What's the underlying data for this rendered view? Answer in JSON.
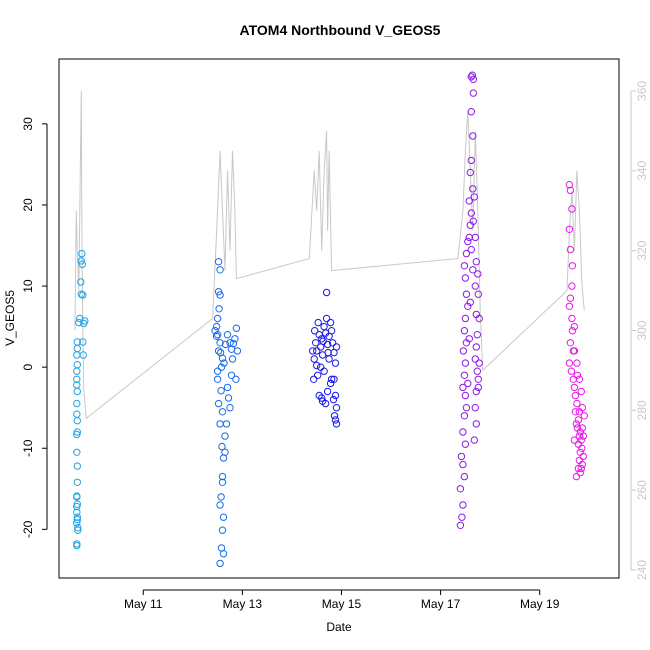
{
  "chart_data": {
    "type": "scatter",
    "title": "ATOM4 Northbound V_GEOS5",
    "xlabel": "Date",
    "ylabel": "V_GEOS5",
    "xlim": [
      9.3,
      20.6
    ],
    "ylim": [
      -26,
      38
    ],
    "x_ticks": [
      {
        "value": 11,
        "label": "May 11"
      },
      {
        "value": 13,
        "label": "May 13"
      },
      {
        "value": 15,
        "label": "May 15"
      },
      {
        "value": 17,
        "label": "May 17"
      },
      {
        "value": 19,
        "label": "May 19"
      }
    ],
    "y_ticks": [
      -20,
      -10,
      0,
      10,
      20,
      30
    ],
    "y2lim": [
      238,
      368
    ],
    "y2_ticks": [
      240,
      260,
      280,
      300,
      320,
      340,
      360
    ],
    "grid": false,
    "series": [
      {
        "color": "#1fa3e6",
        "x_range": [
          9.62,
          9.9
        ],
        "points": [
          [
            9.66,
            -22.0
          ],
          [
            9.66,
            -21.8
          ],
          [
            9.68,
            -19.8
          ],
          [
            9.66,
            -19.2
          ],
          [
            9.67,
            -18.5
          ],
          [
            9.66,
            -17.9
          ],
          [
            9.66,
            -17.2
          ],
          [
            9.67,
            -16.9
          ],
          [
            9.66,
            -15.9
          ],
          [
            9.67,
            -14.2
          ],
          [
            9.67,
            -12.2
          ],
          [
            9.66,
            -10.5
          ],
          [
            9.67,
            -8.0
          ],
          [
            9.66,
            -8.3
          ],
          [
            9.67,
            -6.6
          ],
          [
            9.66,
            -5.8
          ],
          [
            9.66,
            -4.5
          ],
          [
            9.67,
            -3.0
          ],
          [
            9.66,
            -2.2
          ],
          [
            9.66,
            -1.5
          ],
          [
            9.66,
            -0.5
          ],
          [
            9.67,
            0.3
          ],
          [
            9.66,
            1.5
          ],
          [
            9.67,
            2.3
          ],
          [
            9.67,
            3.1
          ],
          [
            9.72,
            6.0
          ],
          [
            9.75,
            9.0
          ],
          [
            9.74,
            10.5
          ],
          [
            9.77,
            12.7
          ],
          [
            9.76,
            14.0
          ],
          [
            9.78,
            3.1
          ],
          [
            9.79,
            1.5
          ],
          [
            9.8,
            5.4
          ],
          [
            9.82,
            5.7
          ],
          [
            9.78,
            8.9
          ],
          [
            9.75,
            13.1
          ],
          [
            9.7,
            5.5
          ],
          [
            9.68,
            -20.1
          ],
          [
            9.67,
            -18.8
          ],
          [
            9.66,
            -16.0
          ]
        ]
      },
      {
        "color": "#1a6ae8",
        "x_range": [
          12.4,
          12.95
        ],
        "points": [
          [
            12.55,
            -24.2
          ],
          [
            12.62,
            -23.0
          ],
          [
            12.58,
            -22.3
          ],
          [
            12.6,
            -20.1
          ],
          [
            12.55,
            -17.0
          ],
          [
            12.6,
            -14.2
          ],
          [
            12.62,
            -11.2
          ],
          [
            12.59,
            -9.8
          ],
          [
            12.65,
            -8.5
          ],
          [
            12.55,
            -7.0
          ],
          [
            12.6,
            -5.5
          ],
          [
            12.52,
            -4.5
          ],
          [
            12.57,
            -2.9
          ],
          [
            12.5,
            -1.5
          ],
          [
            12.58,
            0.0
          ],
          [
            12.6,
            1.1
          ],
          [
            12.52,
            2.0
          ],
          [
            12.55,
            3.0
          ],
          [
            12.5,
            4.0
          ],
          [
            12.48,
            5.0
          ],
          [
            12.5,
            6.0
          ],
          [
            12.53,
            7.2
          ],
          [
            12.55,
            8.9
          ],
          [
            12.52,
            9.3
          ],
          [
            12.55,
            12.0
          ],
          [
            12.52,
            13.0
          ],
          [
            12.7,
            4.0
          ],
          [
            12.75,
            3.0
          ],
          [
            12.78,
            2.2
          ],
          [
            12.8,
            1.0
          ],
          [
            12.85,
            3.5
          ],
          [
            12.88,
            4.8
          ],
          [
            12.87,
            -1.5
          ],
          [
            12.7,
            -2.5
          ],
          [
            12.75,
            -5.0
          ],
          [
            12.82,
            2.9
          ],
          [
            12.9,
            2.0
          ],
          [
            12.65,
            -10.5
          ],
          [
            12.6,
            -13.5
          ],
          [
            12.57,
            -16.0
          ],
          [
            12.62,
            -18.5
          ],
          [
            12.68,
            -7.0
          ],
          [
            12.45,
            4.5
          ],
          [
            12.48,
            3.8
          ],
          [
            12.5,
            -0.5
          ],
          [
            12.56,
            1.8
          ],
          [
            12.63,
            0.5
          ],
          [
            12.66,
            2.8
          ],
          [
            12.72,
            -3.8
          ],
          [
            12.78,
            -1.0
          ]
        ]
      },
      {
        "color": "#1a1ae6",
        "x_range": [
          14.4,
          14.95
        ],
        "points": [
          [
            14.42,
            2.0
          ],
          [
            14.45,
            1.0
          ],
          [
            14.5,
            0.2
          ],
          [
            14.52,
            -1.0
          ],
          [
            14.48,
            3.0
          ],
          [
            14.55,
            4.0
          ],
          [
            14.58,
            2.5
          ],
          [
            14.6,
            3.5
          ],
          [
            14.62,
            1.5
          ],
          [
            14.65,
            5.0
          ],
          [
            14.68,
            4.2
          ],
          [
            14.7,
            6.0
          ],
          [
            14.72,
            2.8
          ],
          [
            14.75,
            3.8
          ],
          [
            14.78,
            5.5
          ],
          [
            14.8,
            4.5
          ],
          [
            14.82,
            3.0
          ],
          [
            14.85,
            1.8
          ],
          [
            14.88,
            0.5
          ],
          [
            14.9,
            2.5
          ],
          [
            14.55,
            -3.5
          ],
          [
            14.6,
            -3.8
          ],
          [
            14.62,
            -4.2
          ],
          [
            14.68,
            -4.5
          ],
          [
            14.72,
            -3.0
          ],
          [
            14.78,
            -2.0
          ],
          [
            14.85,
            -1.5
          ],
          [
            14.88,
            -3.5
          ],
          [
            14.9,
            -5.0
          ],
          [
            14.86,
            -6.0
          ],
          [
            14.9,
            -7.0
          ],
          [
            14.88,
            -6.5
          ],
          [
            14.7,
            9.2
          ],
          [
            14.5,
            2.0
          ],
          [
            14.58,
            0.0
          ],
          [
            14.65,
            -0.5
          ],
          [
            14.75,
            1.0
          ],
          [
            14.8,
            -1.5
          ],
          [
            14.84,
            -4.0
          ],
          [
            14.44,
            -1.5
          ],
          [
            14.46,
            4.5
          ],
          [
            14.53,
            5.5
          ],
          [
            14.63,
            3.2
          ],
          [
            14.73,
            1.8
          ]
        ]
      },
      {
        "color": "#8d1ae6",
        "x_range": [
          17.35,
          17.8
        ],
        "points": [
          [
            17.4,
            -19.5
          ],
          [
            17.43,
            -18.5
          ],
          [
            17.45,
            -17.0
          ],
          [
            17.4,
            -15.0
          ],
          [
            17.48,
            -13.5
          ],
          [
            17.45,
            -12.0
          ],
          [
            17.42,
            -11.0
          ],
          [
            17.5,
            -9.5
          ],
          [
            17.45,
            -8.0
          ],
          [
            17.48,
            -6.0
          ],
          [
            17.52,
            -5.0
          ],
          [
            17.5,
            -3.5
          ],
          [
            17.45,
            -2.5
          ],
          [
            17.48,
            -1.0
          ],
          [
            17.5,
            0.5
          ],
          [
            17.46,
            2.0
          ],
          [
            17.52,
            3.0
          ],
          [
            17.48,
            4.5
          ],
          [
            17.5,
            6.0
          ],
          [
            17.55,
            7.5
          ],
          [
            17.52,
            9.0
          ],
          [
            17.5,
            11.0
          ],
          [
            17.48,
            12.5
          ],
          [
            17.52,
            14.0
          ],
          [
            17.55,
            15.5
          ],
          [
            17.58,
            16.0
          ],
          [
            17.6,
            17.5
          ],
          [
            17.62,
            19.0
          ],
          [
            17.58,
            20.5
          ],
          [
            17.65,
            22.0
          ],
          [
            17.6,
            24.0
          ],
          [
            17.62,
            25.5
          ],
          [
            17.65,
            28.5
          ],
          [
            17.62,
            31.5
          ],
          [
            17.66,
            33.8
          ],
          [
            17.62,
            35.8
          ],
          [
            17.64,
            36.0
          ],
          [
            17.66,
            35.5
          ],
          [
            17.68,
            21.0
          ],
          [
            17.7,
            16.0
          ],
          [
            17.72,
            13.0
          ],
          [
            17.7,
            10.0
          ],
          [
            17.72,
            6.5
          ],
          [
            17.74,
            4.0
          ],
          [
            17.72,
            2.5
          ],
          [
            17.7,
            1.0
          ],
          [
            17.74,
            -0.5
          ],
          [
            17.76,
            -1.5
          ],
          [
            17.78,
            0.5
          ],
          [
            17.72,
            -3.0
          ],
          [
            17.7,
            -5.0
          ],
          [
            17.72,
            -7.0
          ],
          [
            17.68,
            -9.0
          ],
          [
            17.55,
            -2.0
          ],
          [
            17.58,
            3.5
          ],
          [
            17.6,
            8.0
          ],
          [
            17.65,
            12.0
          ],
          [
            17.62,
            14.5
          ],
          [
            17.66,
            18.0
          ],
          [
            17.75,
            11.5
          ],
          [
            17.76,
            9.0
          ],
          [
            17.78,
            6.0
          ],
          [
            17.76,
            -2.5
          ]
        ]
      },
      {
        "color": "#e61ae6",
        "x_range": [
          19.55,
          19.95
        ],
        "points": [
          [
            19.6,
            22.5
          ],
          [
            19.62,
            21.8
          ],
          [
            19.65,
            19.5
          ],
          [
            19.6,
            17.0
          ],
          [
            19.62,
            14.5
          ],
          [
            19.66,
            12.5
          ],
          [
            19.65,
            10.0
          ],
          [
            19.62,
            8.5
          ],
          [
            19.6,
            7.5
          ],
          [
            19.65,
            6.0
          ],
          [
            19.7,
            5.0
          ],
          [
            19.62,
            3.0
          ],
          [
            19.68,
            2.0
          ],
          [
            19.6,
            0.5
          ],
          [
            19.64,
            -0.5
          ],
          [
            19.68,
            -1.5
          ],
          [
            19.7,
            -2.5
          ],
          [
            19.72,
            -3.5
          ],
          [
            19.75,
            -4.5
          ],
          [
            19.72,
            -5.5
          ],
          [
            19.78,
            -6.5
          ],
          [
            19.76,
            -7.5
          ],
          [
            19.8,
            -8.5
          ],
          [
            19.78,
            -9.5
          ],
          [
            19.82,
            -10.5
          ],
          [
            19.8,
            -11.5
          ],
          [
            19.84,
            -12.5
          ],
          [
            19.82,
            -13.0
          ],
          [
            19.86,
            -12.0
          ],
          [
            19.88,
            -11.0
          ],
          [
            19.85,
            -10.0
          ],
          [
            19.88,
            -8.5
          ],
          [
            19.86,
            -7.5
          ],
          [
            19.9,
            -6.0
          ],
          [
            19.86,
            -5.0
          ],
          [
            19.84,
            -3.0
          ],
          [
            19.8,
            -1.5
          ],
          [
            19.75,
            0.5
          ],
          [
            19.7,
            2.0
          ],
          [
            19.66,
            4.5
          ],
          [
            19.7,
            -9.0
          ],
          [
            19.74,
            -13.5
          ],
          [
            19.78,
            -12.5
          ],
          [
            19.82,
            -8.0
          ],
          [
            19.76,
            -1.0
          ],
          [
            19.8,
            -5.5
          ],
          [
            19.74,
            -7.0
          ],
          [
            19.84,
            -9.0
          ]
        ]
      }
    ],
    "secondary_line": {
      "color": "#c8c8c8",
      "points": [
        [
          9.62,
          300
        ],
        [
          9.65,
          330
        ],
        [
          9.67,
          320
        ],
        [
          9.7,
          310
        ],
        [
          9.73,
          340
        ],
        [
          9.75,
          360
        ],
        [
          9.76,
          330
        ],
        [
          9.78,
          300
        ],
        [
          9.8,
          285
        ],
        [
          9.85,
          278
        ],
        [
          12.4,
          303
        ],
        [
          12.5,
          330
        ],
        [
          12.55,
          345
        ],
        [
          12.6,
          330
        ],
        [
          12.65,
          315
        ],
        [
          12.7,
          340
        ],
        [
          12.75,
          320
        ],
        [
          12.8,
          345
        ],
        [
          12.85,
          330
        ],
        [
          12.88,
          313
        ],
        [
          14.35,
          318
        ],
        [
          14.45,
          340
        ],
        [
          14.5,
          330
        ],
        [
          14.55,
          345
        ],
        [
          14.6,
          320
        ],
        [
          14.65,
          340
        ],
        [
          14.7,
          350
        ],
        [
          14.72,
          325
        ],
        [
          14.75,
          345
        ],
        [
          14.8,
          315
        ],
        [
          17.35,
          318
        ],
        [
          17.45,
          330
        ],
        [
          17.5,
          345
        ],
        [
          17.55,
          355
        ],
        [
          17.6,
          340
        ],
        [
          17.65,
          325
        ],
        [
          17.7,
          350
        ],
        [
          17.75,
          330
        ],
        [
          17.8,
          305
        ],
        [
          17.85,
          290
        ],
        [
          19.55,
          310
        ],
        [
          19.6,
          325
        ],
        [
          19.65,
          335
        ],
        [
          19.7,
          320
        ],
        [
          19.75,
          340
        ],
        [
          19.8,
          330
        ],
        [
          19.85,
          312
        ],
        [
          19.9,
          305
        ]
      ]
    }
  }
}
